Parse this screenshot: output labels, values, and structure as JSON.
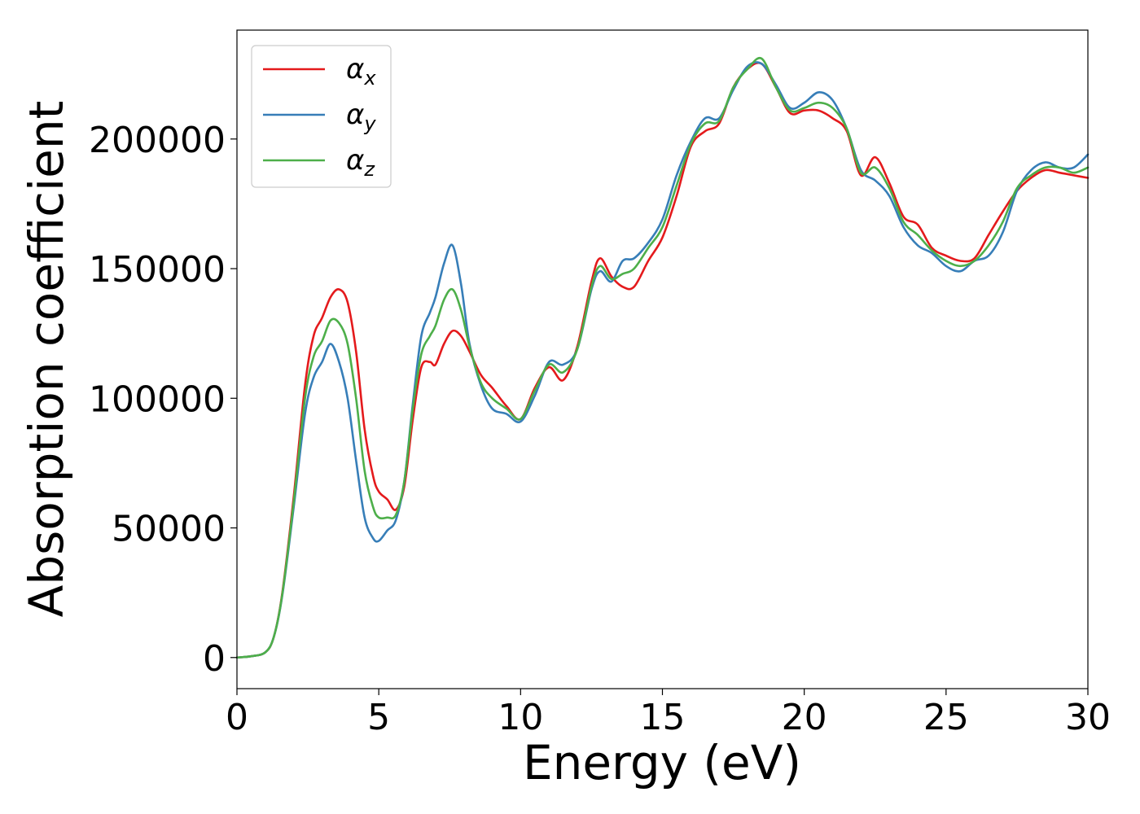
{
  "chart_data": {
    "type": "line",
    "title": "",
    "xlabel": "Energy (eV)",
    "ylabel": "Absorption coefficient",
    "xlim": [
      0,
      30
    ],
    "ylim": [
      -12000,
      242000
    ],
    "xticks": [
      0,
      5,
      10,
      15,
      20,
      25,
      30
    ],
    "yticks": [
      0,
      50000,
      100000,
      150000,
      200000
    ],
    "grid": false,
    "legend_position": "top-left",
    "series": [
      {
        "name": "α_x",
        "symbol": "α",
        "subscript": "x",
        "color": "#e41a1c",
        "x": [
          0,
          0.5,
          1.0,
          1.3,
          1.6,
          2.0,
          2.4,
          2.7,
          3.0,
          3.3,
          3.6,
          3.9,
          4.2,
          4.5,
          4.8,
          5.0,
          5.3,
          5.6,
          5.9,
          6.2,
          6.5,
          6.8,
          7.0,
          7.3,
          7.6,
          7.9,
          8.2,
          8.6,
          9.0,
          9.5,
          10.0,
          10.5,
          11.0,
          11.5,
          12.0,
          12.5,
          12.8,
          13.2,
          13.6,
          14.0,
          14.5,
          15.0,
          15.5,
          16.0,
          16.5,
          17.0,
          17.5,
          18.0,
          18.5,
          19.0,
          19.5,
          20.0,
          20.5,
          21.0,
          21.5,
          22.0,
          22.5,
          23.0,
          23.5,
          24.0,
          24.5,
          25.0,
          25.5,
          26.0,
          26.5,
          27.0,
          27.5,
          28.0,
          28.5,
          29.0,
          29.5,
          30.0
        ],
        "y": [
          0,
          500,
          2000,
          8000,
          25000,
          62000,
          105000,
          124000,
          131000,
          139000,
          142000,
          137000,
          118000,
          88000,
          70000,
          64000,
          61000,
          57000,
          66000,
          92000,
          112000,
          114000,
          113000,
          121000,
          126000,
          124000,
          118000,
          109000,
          104000,
          97000,
          92000,
          104000,
          112000,
          107000,
          120000,
          145000,
          154000,
          147000,
          143000,
          143000,
          153000,
          162000,
          178000,
          197000,
          203000,
          206000,
          220000,
          227000,
          229000,
          220000,
          210000,
          211000,
          211000,
          208000,
          203000,
          186000,
          193000,
          183000,
          170000,
          167000,
          158000,
          155000,
          153000,
          154000,
          163000,
          172000,
          180000,
          185000,
          188000,
          187000,
          186000,
          185000
        ]
      },
      {
        "name": "α_y",
        "symbol": "α",
        "subscript": "y",
        "color": "#377eb8",
        "x": [
          0,
          0.5,
          1.0,
          1.3,
          1.6,
          2.0,
          2.4,
          2.7,
          3.0,
          3.3,
          3.6,
          3.9,
          4.2,
          4.5,
          4.8,
          5.0,
          5.3,
          5.6,
          5.9,
          6.2,
          6.5,
          6.8,
          7.0,
          7.3,
          7.6,
          7.9,
          8.2,
          8.6,
          9.0,
          9.5,
          10.0,
          10.5,
          11.0,
          11.5,
          12.0,
          12.5,
          12.8,
          13.2,
          13.6,
          14.0,
          14.5,
          15.0,
          15.5,
          16.0,
          16.5,
          17.0,
          17.5,
          18.0,
          18.5,
          19.0,
          19.5,
          20.0,
          20.5,
          21.0,
          21.5,
          22.0,
          22.5,
          23.0,
          23.5,
          24.0,
          24.5,
          25.0,
          25.5,
          26.0,
          26.5,
          27.0,
          27.5,
          28.0,
          28.5,
          29.0,
          29.5,
          30.0
        ],
        "y": [
          0,
          500,
          2000,
          8000,
          24000,
          58000,
          94000,
          108000,
          114000,
          121000,
          114000,
          100000,
          76000,
          54000,
          46000,
          45000,
          49000,
          53000,
          68000,
          98000,
          124000,
          133000,
          139000,
          152000,
          159000,
          144000,
          121000,
          105000,
          96000,
          94000,
          91000,
          101000,
          114000,
          113000,
          119000,
          142000,
          149000,
          145000,
          153000,
          154000,
          160000,
          169000,
          186000,
          199000,
          208000,
          208000,
          219000,
          228000,
          229000,
          221000,
          212000,
          214000,
          218000,
          215000,
          204000,
          188000,
          184000,
          178000,
          166000,
          159000,
          156000,
          151000,
          149000,
          153000,
          155000,
          164000,
          180000,
          188000,
          191000,
          189000,
          189000,
          194000
        ]
      },
      {
        "name": "α_z",
        "symbol": "α",
        "subscript": "z",
        "color": "#4daf4a",
        "x": [
          0,
          0.5,
          1.0,
          1.3,
          1.6,
          2.0,
          2.4,
          2.7,
          3.0,
          3.3,
          3.6,
          3.9,
          4.2,
          4.5,
          4.8,
          5.0,
          5.3,
          5.6,
          5.9,
          6.2,
          6.5,
          6.8,
          7.0,
          7.3,
          7.6,
          7.9,
          8.2,
          8.6,
          9.0,
          9.5,
          10.0,
          10.5,
          11.0,
          11.5,
          12.0,
          12.5,
          12.8,
          13.2,
          13.6,
          14.0,
          14.5,
          15.0,
          15.5,
          16.0,
          16.5,
          17.0,
          17.5,
          18.0,
          18.5,
          19.0,
          19.5,
          20.0,
          20.5,
          21.0,
          21.5,
          22.0,
          22.5,
          23.0,
          23.5,
          24.0,
          24.5,
          25.0,
          25.5,
          26.0,
          26.5,
          27.0,
          27.5,
          28.0,
          28.5,
          29.0,
          29.5,
          30.0
        ],
        "y": [
          0,
          500,
          2000,
          8000,
          24500,
          60000,
          100000,
          116000,
          122000,
          130000,
          129000,
          121000,
          100000,
          72000,
          58000,
          54000,
          54000,
          55000,
          68000,
          96000,
          117000,
          124000,
          128000,
          138000,
          142000,
          134000,
          120000,
          106000,
          100000,
          96000,
          92000,
          103000,
          113000,
          110000,
          119000,
          143000,
          151000,
          146000,
          148000,
          150000,
          158000,
          166000,
          182000,
          198000,
          206000,
          207000,
          220000,
          227000,
          231000,
          220000,
          211000,
          212000,
          214000,
          212000,
          204000,
          187000,
          189000,
          181000,
          168000,
          163000,
          157000,
          153000,
          151000,
          153000,
          159000,
          168000,
          181000,
          186000,
          189000,
          189000,
          187000,
          189000
        ]
      }
    ]
  }
}
